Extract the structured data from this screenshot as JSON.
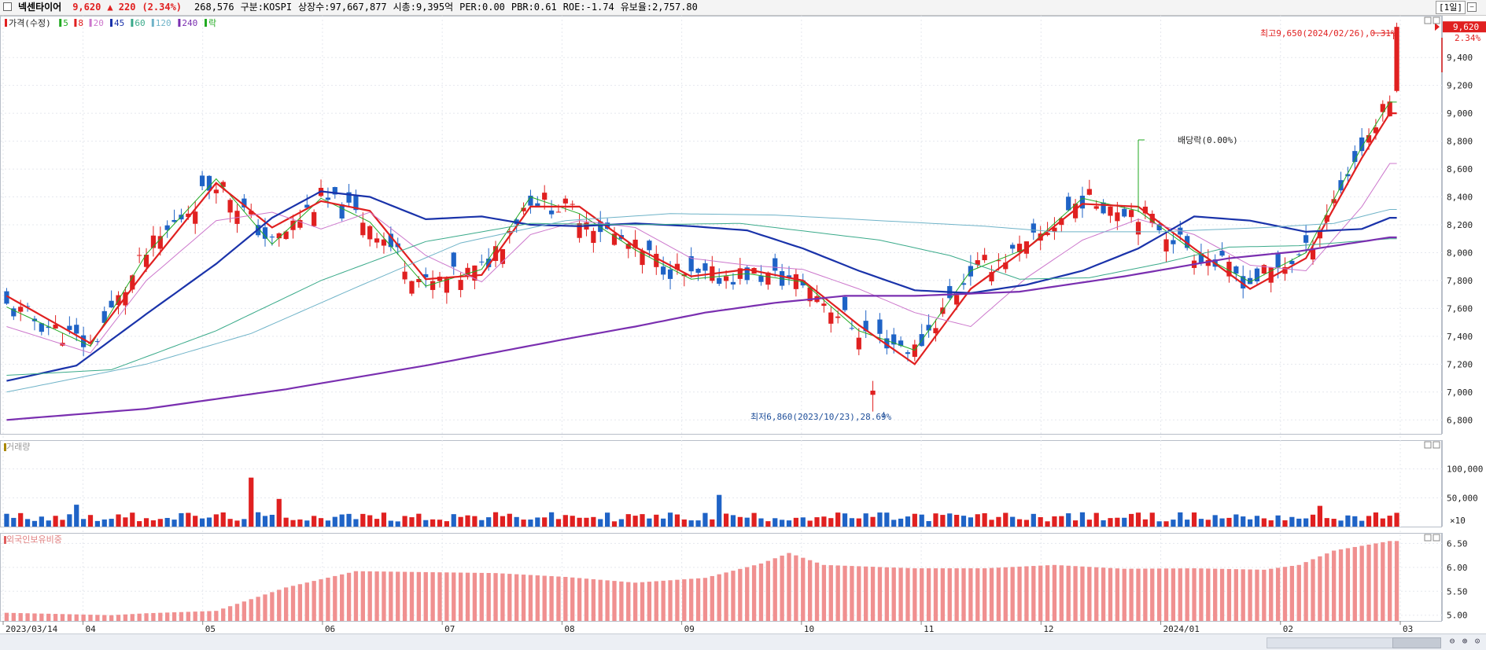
{
  "header": {
    "name": "넥센타이어",
    "price": "9,620",
    "change": "▲ 220",
    "change_pct": "(2.34%)",
    "volume": "268,576",
    "market": "구분:KOSPI",
    "shares": "상장수:97,667,877",
    "mcap": "시총:9,395억",
    "per": "PER:0.00",
    "pbr": "PBR:0.61",
    "roe": "ROE:-1.74",
    "float": "유보율:2,757.80",
    "period": "[1일]"
  },
  "legend": [
    {
      "label": "가격(수정)",
      "color": "#e02020"
    },
    {
      "label": "5",
      "color": "#22aa22"
    },
    {
      "label": "8",
      "color": "#e02020"
    },
    {
      "label": "20",
      "color": "#cc77cc"
    },
    {
      "label": "45",
      "color": "#1a33aa"
    },
    {
      "label": "60",
      "color": "#3aaa8a"
    },
    {
      "label": "120",
      "color": "#6fb3c8"
    },
    {
      "label": "240",
      "color": "#7a2fb0"
    },
    {
      "label": "락",
      "color": "#22aa22"
    }
  ],
  "annotations": {
    "high": "최고9,650(2024/02/26),0.31%",
    "low": "최저6,860(2023/10/23),28.69%",
    "dividend": "배당락(0.00%)",
    "last_price": "9,620",
    "last_pct": "2.34%"
  },
  "volume_panel": {
    "title": "거래량",
    "unit": "×10"
  },
  "foreign_panel": {
    "title": "외국인보유비중"
  },
  "chart_data": [
    {
      "type": "candlestick",
      "title": "가격(수정)",
      "ylim": [
        6700,
        9700
      ],
      "yticks": [
        6800,
        7000,
        7200,
        7400,
        7600,
        7800,
        8000,
        8200,
        8400,
        8600,
        8800,
        9000,
        9200,
        9400
      ],
      "xticks": [
        "2023/03/14",
        "04",
        "05",
        "06",
        "07",
        "08",
        "09",
        "10",
        "11",
        "12",
        "2024/01",
        "02",
        "03"
      ],
      "moving_average_series": [
        {
          "name": "5",
          "anchors": [
            [
              0,
              7610
            ],
            [
              12,
              7330
            ],
            [
              20,
              7990
            ],
            [
              30,
              8530
            ],
            [
              38,
              8060
            ],
            [
              45,
              8390
            ],
            [
              52,
              8220
            ],
            [
              60,
              7760
            ],
            [
              68,
              7880
            ],
            [
              75,
              8400
            ],
            [
              82,
              8280
            ],
            [
              90,
              8020
            ],
            [
              98,
              7810
            ],
            [
              106,
              7850
            ],
            [
              114,
              7790
            ],
            [
              122,
              7440
            ],
            [
              130,
              7300
            ],
            [
              138,
              7870
            ],
            [
              146,
              8030
            ],
            [
              154,
              8390
            ],
            [
              162,
              8300
            ],
            [
              170,
              8010
            ],
            [
              178,
              7790
            ],
            [
              186,
              8000
            ],
            [
              194,
              8760
            ],
            [
              198,
              9080
            ]
          ],
          "color": "#22aa22"
        },
        {
          "name": "8",
          "anchors": [
            [
              0,
              7690
            ],
            [
              12,
              7350
            ],
            [
              20,
              7880
            ],
            [
              30,
              8500
            ],
            [
              38,
              8180
            ],
            [
              45,
              8370
            ],
            [
              52,
              8300
            ],
            [
              60,
              7810
            ],
            [
              68,
              7840
            ],
            [
              75,
              8330
            ],
            [
              82,
              8330
            ],
            [
              90,
              8040
            ],
            [
              98,
              7830
            ],
            [
              106,
              7880
            ],
            [
              114,
              7800
            ],
            [
              122,
              7480
            ],
            [
              130,
              7200
            ],
            [
              138,
              7740
            ],
            [
              146,
              8030
            ],
            [
              154,
              8350
            ],
            [
              162,
              8330
            ],
            [
              170,
              8030
            ],
            [
              178,
              7740
            ],
            [
              186,
              7960
            ],
            [
              194,
              8680
            ],
            [
              198,
              9000
            ]
          ],
          "color": "#e02020"
        },
        {
          "name": "20",
          "anchors": [
            [
              0,
              7470
            ],
            [
              12,
              7280
            ],
            [
              20,
              7800
            ],
            [
              30,
              8230
            ],
            [
              38,
              8290
            ],
            [
              45,
              8170
            ],
            [
              52,
              8290
            ],
            [
              60,
              7980
            ],
            [
              68,
              7790
            ],
            [
              75,
              8130
            ],
            [
              82,
              8230
            ],
            [
              90,
              8180
            ],
            [
              98,
              7960
            ],
            [
              106,
              7910
            ],
            [
              114,
              7880
            ],
            [
              122,
              7740
            ],
            [
              130,
              7570
            ],
            [
              138,
              7470
            ],
            [
              146,
              7820
            ],
            [
              154,
              8090
            ],
            [
              162,
              8240
            ],
            [
              170,
              8130
            ],
            [
              178,
              7910
            ],
            [
              186,
              7870
            ],
            [
              194,
              8330
            ],
            [
              198,
              8640
            ]
          ],
          "color": "#cc77cc"
        },
        {
          "name": "45",
          "anchors": [
            [
              0,
              7080
            ],
            [
              10,
              7190
            ],
            [
              20,
              7560
            ],
            [
              30,
              7920
            ],
            [
              38,
              8250
            ],
            [
              45,
              8440
            ],
            [
              52,
              8400
            ],
            [
              60,
              8240
            ],
            [
              68,
              8260
            ],
            [
              75,
              8200
            ],
            [
              82,
              8190
            ],
            [
              90,
              8210
            ],
            [
              98,
              8190
            ],
            [
              106,
              8160
            ],
            [
              114,
              8030
            ],
            [
              122,
              7870
            ],
            [
              130,
              7730
            ],
            [
              138,
              7710
            ],
            [
              146,
              7770
            ],
            [
              154,
              7870
            ],
            [
              162,
              8030
            ],
            [
              170,
              8260
            ],
            [
              178,
              8230
            ],
            [
              186,
              8150
            ],
            [
              194,
              8170
            ],
            [
              198,
              8250
            ]
          ],
          "color": "#1a33aa"
        },
        {
          "name": "60",
          "anchors": [
            [
              0,
              7120
            ],
            [
              15,
              7160
            ],
            [
              30,
              7440
            ],
            [
              45,
              7800
            ],
            [
              60,
              8080
            ],
            [
              75,
              8210
            ],
            [
              90,
              8200
            ],
            [
              105,
              8210
            ],
            [
              115,
              8150
            ],
            [
              125,
              8090
            ],
            [
              135,
              7980
            ],
            [
              145,
              7810
            ],
            [
              155,
              7820
            ],
            [
              165,
              7920
            ],
            [
              175,
              8040
            ],
            [
              185,
              8050
            ],
            [
              198,
              8100
            ]
          ],
          "color": "#3aaa8a"
        },
        {
          "name": "120",
          "anchors": [
            [
              0,
              7000
            ],
            [
              20,
              7200
            ],
            [
              35,
              7420
            ],
            [
              50,
              7750
            ],
            [
              65,
              8070
            ],
            [
              80,
              8230
            ],
            [
              95,
              8280
            ],
            [
              110,
              8270
            ],
            [
              125,
              8230
            ],
            [
              140,
              8190
            ],
            [
              150,
              8150
            ],
            [
              165,
              8150
            ],
            [
              180,
              8180
            ],
            [
              190,
              8210
            ],
            [
              198,
              8310
            ]
          ],
          "color": "#6fb3c8"
        },
        {
          "name": "240",
          "anchors": [
            [
              0,
              6800
            ],
            [
              20,
              6880
            ],
            [
              40,
              7020
            ],
            [
              60,
              7190
            ],
            [
              80,
              7380
            ],
            [
              90,
              7470
            ],
            [
              100,
              7570
            ],
            [
              110,
              7640
            ],
            [
              120,
              7690
            ],
            [
              130,
              7690
            ],
            [
              145,
              7720
            ],
            [
              160,
              7830
            ],
            [
              175,
              7960
            ],
            [
              185,
              8010
            ],
            [
              198,
              8110
            ]
          ],
          "color": "#7a2fb0"
        }
      ],
      "last_close": 9620,
      "high": 9650,
      "low": 6860
    },
    {
      "type": "bar",
      "title": "거래량",
      "yticks": [
        50000,
        100000
      ],
      "ylim": [
        0,
        150000
      ]
    },
    {
      "type": "bar",
      "title": "외국인보유비중",
      "yticks": [
        5.0,
        5.5,
        6.0,
        6.5
      ],
      "ylim": [
        4.88,
        6.72
      ],
      "anchors": [
        [
          0,
          5.05
        ],
        [
          15,
          5.0
        ],
        [
          20,
          5.04
        ],
        [
          30,
          5.09
        ],
        [
          40,
          5.58
        ],
        [
          50,
          5.92
        ],
        [
          60,
          5.9
        ],
        [
          70,
          5.88
        ],
        [
          80,
          5.8
        ],
        [
          90,
          5.68
        ],
        [
          100,
          5.78
        ],
        [
          108,
          6.08
        ],
        [
          112,
          6.3
        ],
        [
          117,
          6.05
        ],
        [
          130,
          5.98
        ],
        [
          140,
          5.98
        ],
        [
          150,
          6.05
        ],
        [
          160,
          5.97
        ],
        [
          170,
          5.98
        ],
        [
          180,
          5.95
        ],
        [
          185,
          6.05
        ],
        [
          190,
          6.35
        ],
        [
          198,
          6.55
        ]
      ]
    }
  ]
}
